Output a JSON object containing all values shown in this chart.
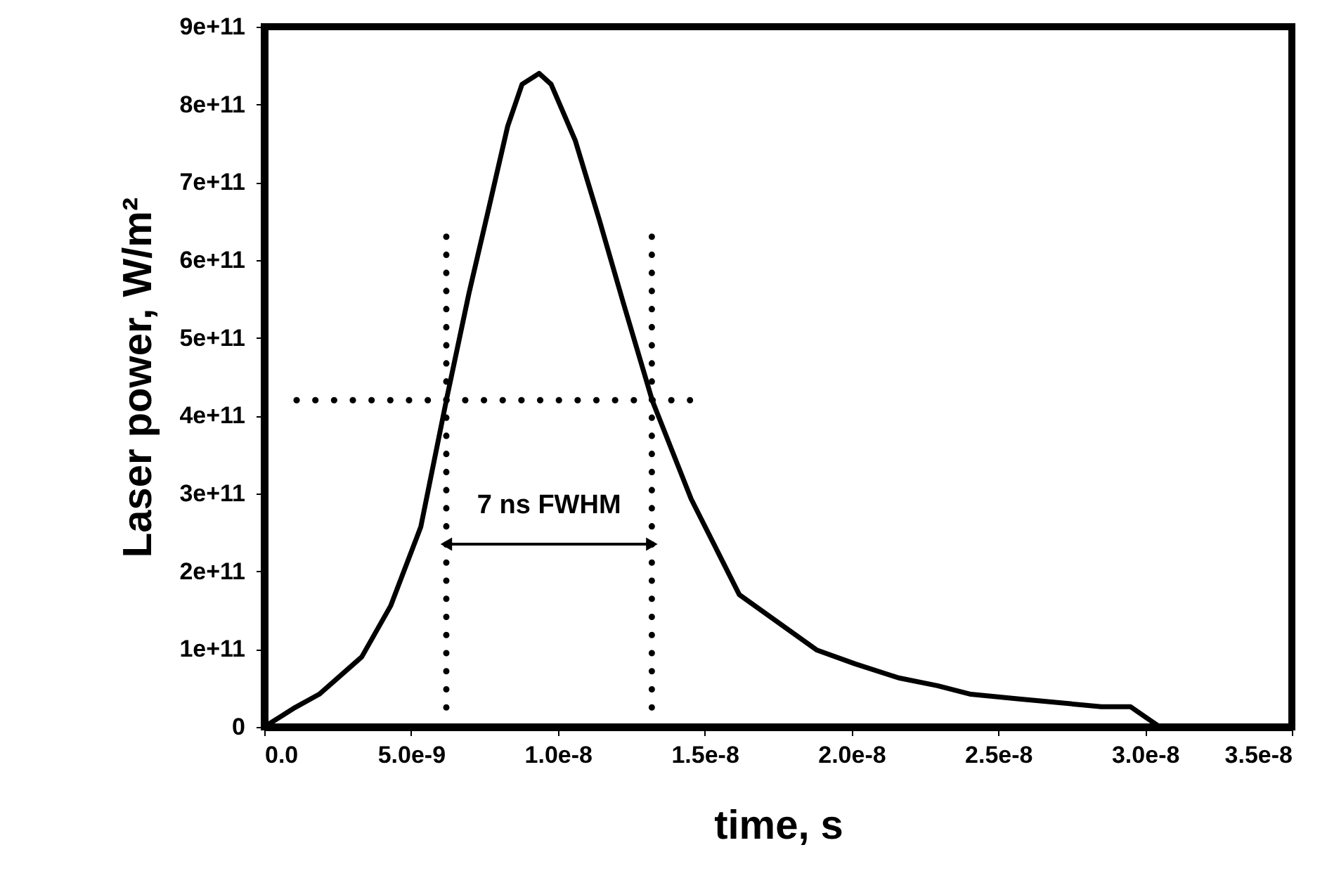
{
  "chart_data": {
    "type": "line",
    "xlabel": "time, s",
    "ylabel": "Laser power, W/m²",
    "xlim": [
      0,
      3.5e-08
    ],
    "ylim": [
      0,
      900000000000.0
    ],
    "xticks": [
      {
        "value": 0,
        "label": "0.0"
      },
      {
        "value": 5e-09,
        "label": "5.0e-9"
      },
      {
        "value": 1e-08,
        "label": "1.0e-8"
      },
      {
        "value": 1.5e-08,
        "label": "1.5e-8"
      },
      {
        "value": 2e-08,
        "label": "2.0e-8"
      },
      {
        "value": 2.5e-08,
        "label": "2.5e-8"
      },
      {
        "value": 3e-08,
        "label": "3.0e-8"
      },
      {
        "value": 3.5e-08,
        "label": "3.5e-8"
      }
    ],
    "yticks": [
      {
        "value": 0,
        "label": "0"
      },
      {
        "value": 100000000000.0,
        "label": "1e+11"
      },
      {
        "value": 200000000000.0,
        "label": "2e+11"
      },
      {
        "value": 300000000000.0,
        "label": "3e+11"
      },
      {
        "value": 400000000000.0,
        "label": "4e+11"
      },
      {
        "value": 500000000000.0,
        "label": "5e+11"
      },
      {
        "value": 600000000000.0,
        "label": "6e+11"
      },
      {
        "value": 700000000000.0,
        "label": "7e+11"
      },
      {
        "value": 800000000000.0,
        "label": "8e+11"
      },
      {
        "value": 900000000000.0,
        "label": "9e+11"
      }
    ],
    "marker": "none",
    "series": [
      {
        "color": "#000000",
        "line_style": "solid",
        "x": [
          0,
          1.05e-09,
          1.87e-09,
          3.32e-09,
          4.31e-09,
          5.33e-09,
          6.23e-09,
          6.97e-09,
          7.63e-09,
          8.29e-09,
          8.78e-09,
          9.36e-09,
          9.77e-09,
          1.059e-08,
          1.141e-08,
          1.223e-08,
          1.322e-08,
          1.454e-08,
          1.618e-08,
          1.881e-08,
          2.013e-08,
          2.161e-08,
          2.293e-08,
          2.407e-08,
          2.572e-08,
          2.851e-08,
          2.95e-08,
          3.05e-08
        ],
        "values": [
          0,
          25000000000.0,
          42000000000.0,
          90000000000.0,
          156000000000.0,
          257000000000.0,
          425000000000.0,
          557000000000.0,
          664000000000.0,
          772000000000.0,
          826000000000.0,
          840000000000.0,
          826000000000.0,
          754000000000.0,
          652000000000.0,
          545000000000.0,
          419000000000.0,
          293000000000.0,
          170000000000.0,
          99000000000.0,
          81000000000.0,
          63000000000.0,
          53000000000.0,
          42000000000.0,
          36000000000.0,
          26000000000.0,
          26000000000.0,
          0
        ]
      },
      {
        "color": "#000000",
        "line_style": "dotted",
        "x": [
          1.1e-09,
          1.45e-08
        ],
        "values": [
          420000000000.0,
          420000000000.0
        ]
      },
      {
        "color": "#000000",
        "line_style": "dotted",
        "x": [
          6.2e-09,
          6.2e-09
        ],
        "values": [
          25000000000.0,
          630000000000.0
        ]
      },
      {
        "color": "#000000",
        "line_style": "dotted",
        "x": [
          1.32e-08,
          1.32e-08
        ],
        "values": [
          25000000000.0,
          630000000000.0
        ]
      }
    ],
    "annotations": [
      "7 ns FWHM"
    ]
  }
}
